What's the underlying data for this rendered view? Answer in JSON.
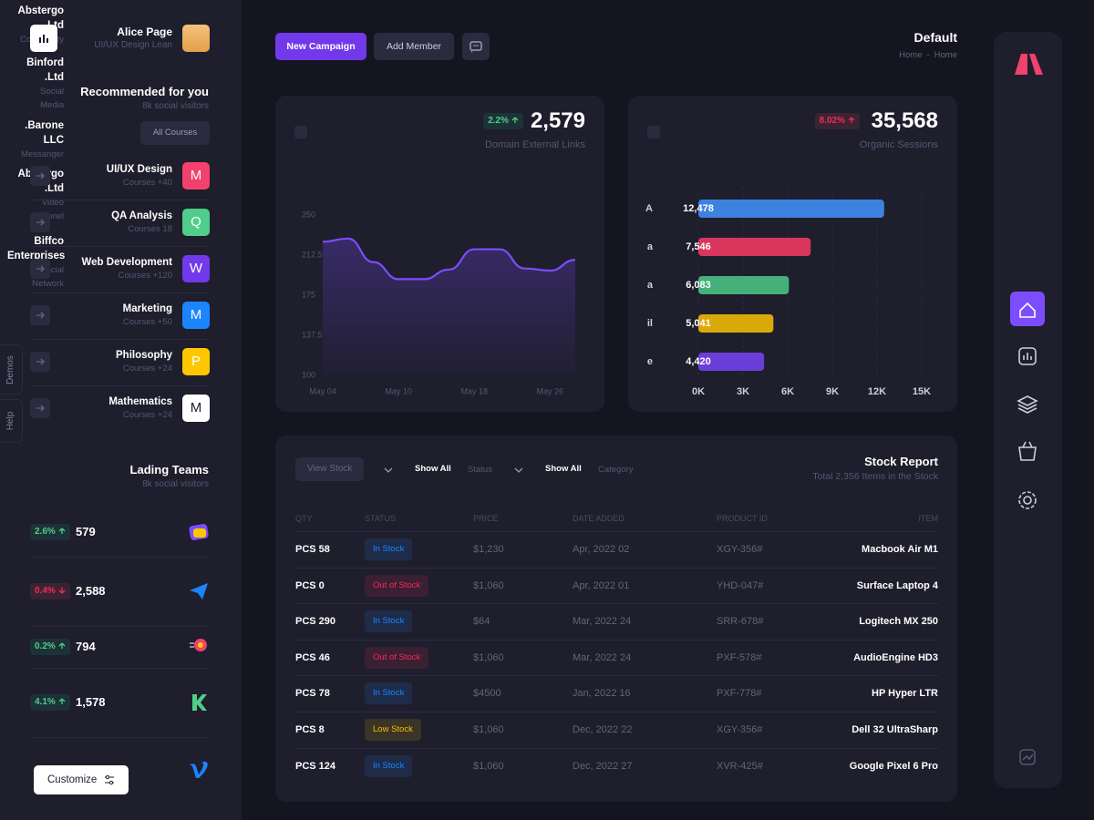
{
  "sidebar": {
    "user": {
      "name": "Alice Page",
      "role": "UI/UX Design Lean"
    },
    "recommended": {
      "title": "Recommended for you",
      "subtitle": "8k social visitors",
      "button": "All Courses",
      "courses": [
        {
          "name": "UI/UX Design",
          "sub": "Courses +40",
          "letter": "M",
          "color": "#f1416c",
          "letter_color": "#ffffff"
        },
        {
          "name": "QA Analysis",
          "sub": "Courses 18",
          "letter": "Q",
          "color": "#50cd89",
          "letter_color": "#ffffff"
        },
        {
          "name": "Web Development",
          "sub": "Courses +120",
          "letter": "W",
          "color": "#7239ea",
          "letter_color": "#ffffff"
        },
        {
          "name": "Marketing",
          "sub": ".Courses +50",
          "letter": "M",
          "color": "#1b84ff",
          "letter_color": "#ffffff"
        },
        {
          "name": "Philosophy",
          "sub": "Courses +24",
          "letter": "P",
          "color": "#ffc700",
          "letter_color": "#ffffff"
        },
        {
          "name": "Mathematics",
          "sub": "Courses +24",
          "letter": "M",
          "color": "#ffffff",
          "letter_color": "#1e1e2d"
        }
      ]
    },
    "teams": {
      "title": "Lading Teams",
      "subtitle": "8k social visitors",
      "items": [
        {
          "change": "2.6%",
          "trend": "up",
          "value": "579",
          "name": "Abstergo .Ltd",
          "sub": "Community"
        },
        {
          "change": "0.4%",
          "trend": "down",
          "value": "2,588",
          "name": "Binford .Ltd",
          "sub": "Social Media"
        },
        {
          "change": "0.2%",
          "trend": "up",
          "value": "794",
          "name": ".Barone LLC",
          "sub": "Messanger"
        },
        {
          "change": "4.1%",
          "trend": "up",
          "value": "1,578",
          "name": "Abstergo .Ltd",
          "sub": "Video Channel"
        },
        {
          "name": "Biffco Enterprises",
          "sub": "Social Network"
        }
      ]
    },
    "customize": "Customize",
    "tabs": [
      "Demos",
      "Help"
    ]
  },
  "toolbar": {
    "buttons": [
      "New Campaign",
      "Add Member"
    ],
    "title": "Default",
    "breadcrumb": [
      "Home",
      "Home"
    ],
    "separator": "-"
  },
  "chart_data": [
    {
      "type": "line",
      "stat_change": "2.2%",
      "trend": "up",
      "change_color": "#50cd89",
      "stat_value": "2,579",
      "stat_label": "Domain External Links",
      "categories": [
        "May 04",
        null,
        null,
        "May 10",
        null,
        null,
        "May 18",
        null,
        null,
        "May 26",
        null
      ],
      "values": [
        225,
        228,
        206,
        190,
        190,
        199,
        218,
        218,
        200,
        198,
        208
      ],
      "color": "#7c4dff",
      "ylim": [
        100,
        250
      ],
      "yticks": [
        100,
        137.5,
        175,
        212.5,
        250
      ]
    },
    {
      "type": "bar",
      "orientation": "horizontal",
      "stat_change": "8.02%",
      "trend": "up",
      "change_color": "#f8285a",
      "stat_value": "35,568",
      "stat_label": "Organic Sessions",
      "categories": [
        "A",
        "a",
        "a",
        "il",
        "e"
      ],
      "values": [
        12478,
        7546,
        6083,
        5041,
        4420
      ],
      "value_labels": [
        "12,478",
        "7,546",
        "6,083",
        "5,041",
        "4,420"
      ],
      "colors": [
        "#3e82e0",
        "#d9365e",
        "#46b07a",
        "#d9a90a",
        "#6a3ed8"
      ],
      "xlim": [
        0,
        15000
      ],
      "xticks": [
        {
          "value": 0,
          "label": "0K"
        },
        {
          "value": 3000,
          "label": "3K"
        },
        {
          "value": 6000,
          "label": "6K"
        },
        {
          "value": 9000,
          "label": "9K"
        },
        {
          "value": 12000,
          "label": "12K"
        },
        {
          "value": 15000,
          "label": "15K"
        }
      ],
      "grid": true
    }
  ],
  "stock": {
    "title": "Stock Report",
    "subtitle": "Total 2,356 Items in the Stock",
    "controls": {
      "view": "View Stock",
      "show_status": "Show All",
      "status": "Status",
      "show_category": "Show All",
      "category": "Category"
    },
    "columns": [
      "QTY",
      "STATUS",
      "PRICE",
      "DATE ADDED",
      "PRODUCT ID",
      "ITEM"
    ],
    "rows": [
      {
        "qty": "PCS 58",
        "status": "In Stock",
        "status_color": "#1b84ff",
        "price": "$1,230",
        "date": "Apr, 2022 02",
        "id": "XGY-356#",
        "item": "Macbook Air M1"
      },
      {
        "qty": "PCS 0",
        "status": "Out of Stock",
        "status_color": "#f8285a",
        "price": "$1,060",
        "date": "Apr, 2022 01",
        "id": "YHD-047#",
        "item": "Surface Laptop 4"
      },
      {
        "qty": "PCS 290",
        "status": "In Stock",
        "status_color": "#1b84ff",
        "price": "$64",
        "date": "Mar, 2022 24",
        "id": "SRR-678#",
        "item": "Logitech MX 250"
      },
      {
        "qty": "PCS 46",
        "status": "Out of Stock",
        "status_color": "#f8285a",
        "price": "$1,060",
        "date": "Mar, 2022 24",
        "id": "PXF-578#",
        "item": "AudioEngine HD3"
      },
      {
        "qty": "PCS 78",
        "status": "In Stock",
        "status_color": "#1b84ff",
        "price": "$4500",
        "date": "Jan, 2022 16",
        "id": "PXF-778#",
        "item": "HP Hyper LTR"
      },
      {
        "qty": "PCS 8",
        "status": "Low Stock",
        "status_color": "#f6c000",
        "price": "$1,060",
        "date": "Dec, 2022 22",
        "id": "XGY-356#",
        "item": "Dell 32 UltraSharp"
      },
      {
        "qty": "PCS 124",
        "status": "In Stock",
        "status_color": "#1b84ff",
        "price": "$1,060",
        "date": "Dec, 2022 27",
        "id": "XVR-425#",
        "item": "Google Pixel 6 Pro"
      }
    ]
  }
}
